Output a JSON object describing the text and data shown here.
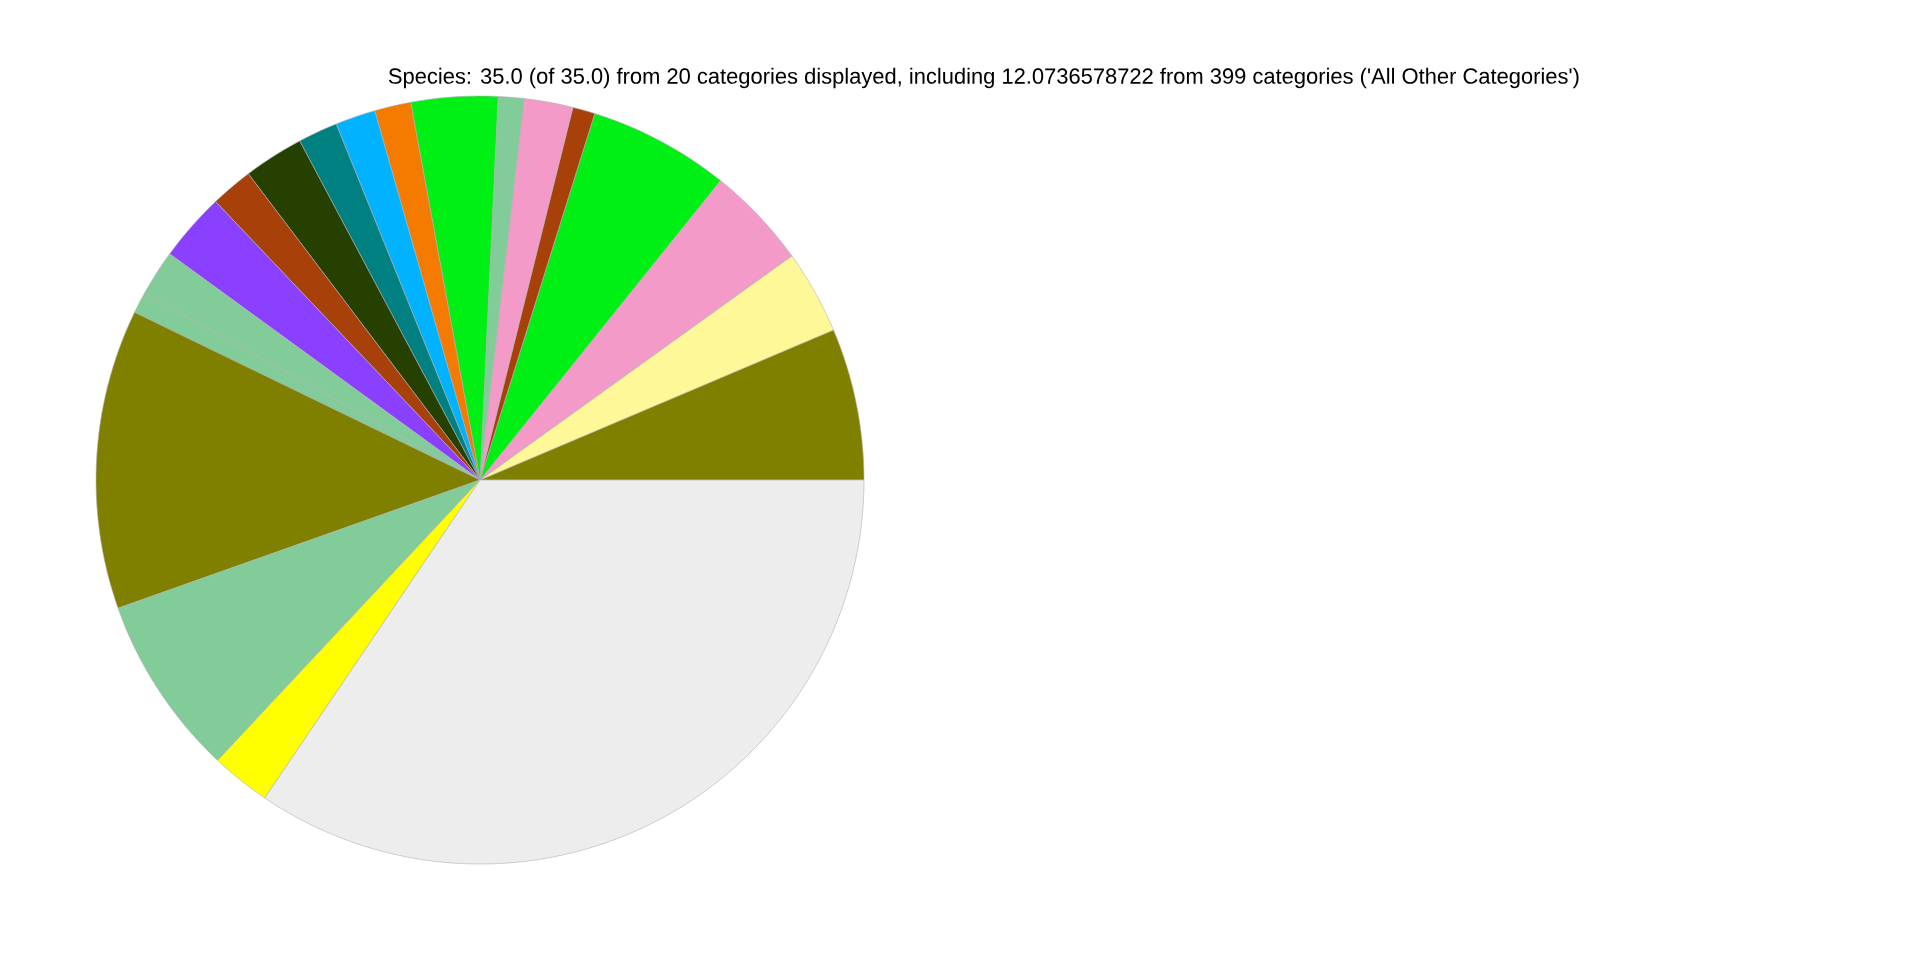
{
  "chart_data": {
    "type": "pie",
    "title": "Species: 35.0 (of 35.0) from 20 categories displayed, including 12.0736578722 from 399 categories ('All Other Categories')",
    "categories": [
      null,
      null,
      null,
      null,
      null,
      null,
      null,
      null,
      null,
      null,
      null,
      null,
      null,
      null,
      null,
      null,
      null,
      null,
      null,
      null
    ],
    "values": [
      6.39,
      3.53,
      4.31,
      5.94,
      0.94,
      2.06,
      1.08,
      3.64,
      1.53,
      1.69,
      1.67,
      2.53,
      1.78,
      2.89,
      1.94,
      0.89,
      12.61,
      7.61,
      2.5,
      34.47
    ],
    "colors": [
      "#808000",
      "#fff899",
      "#f49ac8",
      "#00f015",
      "#a8400a",
      "#f49ac8",
      "#82cc9a",
      "#00f015",
      "#f57a00",
      "#00b2ff",
      "#008080",
      "#264000",
      "#a8400a",
      "#8c40ff",
      "#82cc9a",
      "#82cc9a",
      "#808000",
      "#82cc9a",
      "#ffff00",
      "#ededed"
    ]
  }
}
